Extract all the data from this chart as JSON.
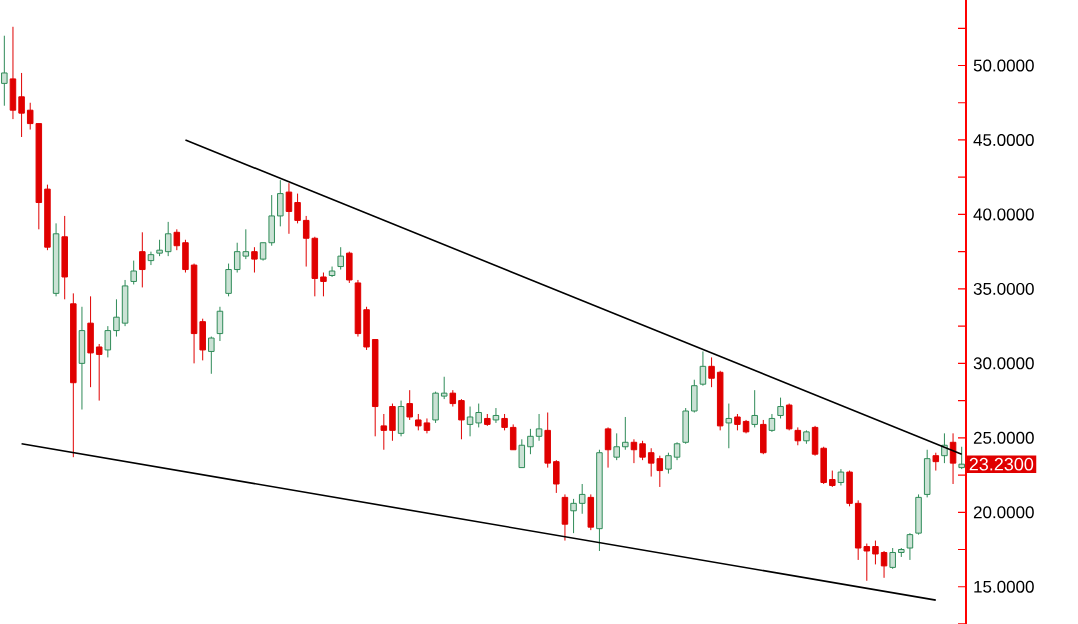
{
  "chart_data": {
    "type": "candlestick",
    "categories": [
      null,
      null,
      null,
      null,
      null,
      null,
      null,
      null,
      null,
      null,
      null,
      null,
      null,
      null,
      null,
      null,
      null,
      null,
      null,
      null,
      null,
      null,
      null,
      null,
      null,
      null,
      null,
      null,
      null,
      null,
      null,
      null,
      null,
      null,
      null,
      null,
      null,
      null,
      null,
      null,
      null,
      null,
      null,
      null,
      null,
      null,
      null,
      null,
      null,
      null,
      null,
      null,
      null,
      null,
      null,
      null,
      null,
      null,
      null,
      null,
      null,
      null,
      null,
      null,
      null,
      null,
      null,
      null,
      null,
      null,
      null,
      null,
      null,
      null,
      null,
      null,
      null,
      null,
      null,
      null,
      null,
      null,
      null,
      null,
      null,
      null,
      null,
      null,
      null,
      null,
      null,
      null,
      null,
      null,
      null,
      null,
      null,
      null,
      null,
      null,
      null,
      null,
      null,
      null,
      null,
      null,
      null,
      null,
      null,
      null,
      null,
      null
    ],
    "ohlc": [
      [
        48.8,
        52.0,
        47.3,
        49.5
      ],
      [
        49.1,
        52.6,
        46.4,
        47.0
      ],
      [
        47.9,
        49.5,
        45.2,
        46.8
      ],
      [
        47.0,
        47.5,
        45.7,
        46.1
      ],
      [
        46.1,
        46.1,
        39.0,
        40.8
      ],
      [
        41.7,
        42.0,
        37.6,
        37.8
      ],
      [
        34.7,
        39.4,
        34.5,
        38.7
      ],
      [
        38.5,
        39.9,
        34.3,
        35.8
      ],
      [
        34.0,
        34.7,
        23.7,
        28.7
      ],
      [
        30.0,
        33.8,
        26.9,
        32.2
      ],
      [
        32.7,
        34.5,
        28.4,
        30.7
      ],
      [
        31.1,
        31.3,
        27.5,
        30.6
      ],
      [
        30.9,
        32.5,
        30.4,
        32.2
      ],
      [
        32.2,
        34.3,
        31.8,
        33.1
      ],
      [
        32.7,
        35.6,
        32.5,
        35.2
      ],
      [
        35.5,
        36.9,
        35.3,
        36.2
      ],
      [
        37.5,
        38.8,
        35.1,
        36.3
      ],
      [
        36.9,
        37.5,
        36.6,
        37.3
      ],
      [
        37.4,
        38.3,
        37.2,
        37.6
      ],
      [
        37.5,
        39.5,
        37.2,
        38.7
      ],
      [
        38.8,
        39.0,
        37.6,
        37.9
      ],
      [
        38.1,
        38.3,
        36.1,
        36.3
      ],
      [
        36.6,
        36.7,
        30.0,
        32.0
      ],
      [
        32.8,
        33.0,
        30.2,
        30.9
      ],
      [
        30.8,
        31.8,
        29.3,
        31.7
      ],
      [
        32.0,
        33.8,
        31.5,
        33.5
      ],
      [
        34.7,
        36.7,
        34.5,
        36.3
      ],
      [
        36.3,
        38.1,
        36.1,
        37.5
      ],
      [
        37.2,
        39.0,
        37.0,
        37.5
      ],
      [
        37.5,
        37.8,
        36.1,
        37.0
      ],
      [
        37.0,
        38.1,
        36.9,
        38.1
      ],
      [
        38.1,
        41.3,
        37.9,
        39.9
      ],
      [
        39.9,
        42.3,
        39.2,
        41.4
      ],
      [
        41.5,
        42.1,
        38.7,
        40.2
      ],
      [
        40.8,
        41.4,
        39.4,
        39.6
      ],
      [
        39.6,
        39.9,
        36.5,
        38.4
      ],
      [
        38.4,
        38.5,
        34.5,
        35.7
      ],
      [
        35.8,
        36.1,
        34.5,
        35.5
      ],
      [
        35.9,
        36.5,
        35.8,
        36.2
      ],
      [
        36.5,
        37.8,
        36.3,
        37.2
      ],
      [
        37.4,
        37.5,
        35.4,
        35.6
      ],
      [
        35.4,
        35.6,
        31.8,
        32.0
      ],
      [
        33.6,
        33.8,
        30.9,
        31.1
      ],
      [
        31.6,
        31.6,
        25.1,
        27.1
      ],
      [
        25.8,
        26.6,
        24.2,
        25.5
      ],
      [
        27.1,
        27.3,
        24.8,
        25.5
      ],
      [
        25.3,
        27.5,
        25.1,
        27.1
      ],
      [
        27.3,
        28.2,
        26.2,
        26.4
      ],
      [
        26.2,
        26.6,
        25.5,
        25.8
      ],
      [
        26.0,
        26.3,
        25.3,
        25.5
      ],
      [
        26.2,
        28.1,
        26.0,
        28.0
      ],
      [
        27.8,
        29.1,
        27.6,
        28.0
      ],
      [
        28.0,
        28.2,
        27.1,
        27.3
      ],
      [
        27.5,
        27.6,
        24.9,
        26.2
      ],
      [
        25.9,
        27.1,
        25.1,
        26.4
      ],
      [
        26.0,
        27.3,
        25.7,
        26.7
      ],
      [
        26.3,
        26.6,
        25.8,
        25.9
      ],
      [
        26.2,
        27.0,
        26.0,
        26.5
      ],
      [
        26.3,
        26.6,
        25.5,
        25.7
      ],
      [
        25.7,
        25.9,
        24.2,
        24.2
      ],
      [
        23.0,
        24.9,
        23.0,
        24.5
      ],
      [
        24.4,
        25.6,
        23.9,
        25.1
      ],
      [
        25.1,
        26.6,
        24.8,
        25.6
      ],
      [
        25.5,
        26.7,
        23.0,
        23.3
      ],
      [
        23.4,
        23.5,
        21.3,
        21.9
      ],
      [
        21.0,
        21.2,
        18.1,
        19.2
      ],
      [
        20.1,
        20.9,
        18.6,
        20.6
      ],
      [
        20.6,
        21.9,
        19.9,
        21.2
      ],
      [
        21.0,
        21.2,
        18.8,
        19.0
      ],
      [
        18.9,
        24.2,
        17.4,
        24.0
      ],
      [
        25.6,
        25.7,
        23.0,
        24.2
      ],
      [
        23.7,
        25.3,
        23.5,
        24.4
      ],
      [
        24.4,
        26.4,
        24.2,
        24.7
      ],
      [
        24.7,
        24.9,
        23.3,
        24.2
      ],
      [
        24.6,
        24.8,
        23.5,
        23.7
      ],
      [
        24.0,
        24.3,
        22.4,
        23.3
      ],
      [
        23.6,
        23.8,
        21.7,
        22.8
      ],
      [
        22.9,
        24.0,
        22.6,
        23.8
      ],
      [
        23.7,
        24.7,
        23.5,
        24.6
      ],
      [
        24.7,
        27.0,
        24.6,
        26.8
      ],
      [
        26.8,
        28.9,
        26.7,
        28.5
      ],
      [
        28.6,
        30.8,
        28.5,
        29.8
      ],
      [
        29.8,
        30.4,
        28.4,
        29.0
      ],
      [
        29.4,
        29.5,
        25.5,
        25.8
      ],
      [
        26.0,
        27.3,
        24.3,
        26.3
      ],
      [
        26.4,
        26.6,
        25.5,
        25.9
      ],
      [
        26.1,
        26.2,
        25.3,
        25.4
      ],
      [
        25.9,
        28.2,
        25.7,
        26.5
      ],
      [
        25.9,
        26.2,
        23.9,
        24.0
      ],
      [
        25.5,
        26.6,
        25.4,
        26.3
      ],
      [
        26.5,
        27.7,
        26.3,
        27.1
      ],
      [
        27.2,
        27.3,
        25.5,
        25.6
      ],
      [
        25.5,
        25.7,
        24.5,
        24.8
      ],
      [
        24.8,
        25.5,
        24.6,
        25.4
      ],
      [
        25.7,
        25.8,
        23.8,
        23.9
      ],
      [
        24.3,
        24.4,
        21.9,
        22.0
      ],
      [
        22.2,
        22.8,
        21.7,
        21.8
      ],
      [
        22.0,
        22.9,
        21.8,
        22.7
      ],
      [
        22.7,
        22.8,
        20.4,
        20.6
      ],
      [
        20.6,
        20.8,
        16.8,
        17.6
      ],
      [
        17.7,
        17.9,
        15.4,
        17.4
      ],
      [
        17.7,
        18.1,
        16.5,
        17.2
      ],
      [
        17.3,
        17.4,
        15.6,
        16.4
      ],
      [
        16.3,
        17.6,
        16.2,
        17.3
      ],
      [
        17.3,
        17.6,
        17.0,
        17.5
      ],
      [
        17.6,
        18.6,
        16.8,
        18.5
      ],
      [
        18.6,
        21.2,
        18.5,
        21.0
      ],
      [
        21.2,
        24.2,
        21.0,
        23.6
      ],
      [
        23.8,
        24.0,
        22.8,
        23.4
      ],
      [
        23.8,
        25.3,
        23.3,
        24.5
      ],
      [
        24.7,
        25.3,
        21.9,
        23.3
      ],
      [
        23.0,
        24.4,
        22.9,
        23.23
      ]
    ],
    "series": [
      {
        "type": "line",
        "color": "#000000",
        "values": [
          null,
          null,
          null,
          null,
          null,
          null,
          null,
          null,
          null,
          null,
          null,
          null,
          null,
          null,
          null,
          null,
          null,
          null,
          null,
          null,
          null,
          45.0,
          null,
          null,
          null,
          null,
          null,
          null,
          null,
          null,
          null,
          null,
          null,
          null,
          null,
          null,
          null,
          null,
          null,
          null,
          null,
          null,
          null,
          null,
          null,
          null,
          null,
          null,
          null,
          null,
          null,
          null,
          null,
          null,
          null,
          null,
          null,
          null,
          null,
          null,
          null,
          null,
          null,
          null,
          null,
          null,
          null,
          null,
          null,
          null,
          null,
          null,
          null,
          null,
          null,
          null,
          null,
          null,
          null,
          null,
          null,
          null,
          null,
          null,
          null,
          null,
          null,
          null,
          null,
          null,
          null,
          null,
          null,
          null,
          null,
          null,
          null,
          null,
          null,
          null,
          null,
          null,
          null,
          null,
          null,
          null,
          null,
          null,
          null,
          null,
          null,
          23.9
        ]
      },
      {
        "type": "line",
        "color": "#000000",
        "values": [
          null,
          null,
          24.6,
          null,
          null,
          null,
          null,
          null,
          null,
          null,
          null,
          null,
          null,
          null,
          null,
          null,
          null,
          null,
          null,
          null,
          null,
          null,
          null,
          null,
          null,
          null,
          null,
          null,
          null,
          null,
          null,
          null,
          null,
          null,
          null,
          null,
          null,
          null,
          null,
          null,
          null,
          null,
          null,
          null,
          null,
          null,
          null,
          null,
          null,
          null,
          null,
          null,
          null,
          null,
          null,
          null,
          null,
          null,
          null,
          null,
          null,
          null,
          null,
          null,
          null,
          null,
          null,
          null,
          null,
          null,
          null,
          null,
          null,
          null,
          null,
          null,
          null,
          null,
          null,
          null,
          null,
          null,
          null,
          null,
          null,
          null,
          null,
          null,
          null,
          null,
          null,
          null,
          null,
          null,
          null,
          null,
          null,
          null,
          null,
          null,
          null,
          null,
          null,
          null,
          null,
          null,
          null,
          null,
          14.1,
          null,
          null,
          null
        ]
      }
    ],
    "ylim": [
      12.5,
      54.4
    ],
    "yticks": [
      {
        "value": 12.5,
        "label": null
      },
      {
        "value": 15,
        "label": "15.0000"
      },
      {
        "value": 17.5,
        "label": null
      },
      {
        "value": 20,
        "label": "20.0000"
      },
      {
        "value": 22.5,
        "label": null
      },
      {
        "value": 25,
        "label": "25.0000"
      },
      {
        "value": 27.5,
        "label": null
      },
      {
        "value": 30,
        "label": "30.0000"
      },
      {
        "value": 32.5,
        "label": null
      },
      {
        "value": 35,
        "label": "35.0000"
      },
      {
        "value": 37.5,
        "label": null
      },
      {
        "value": 40,
        "label": "40.0000"
      },
      {
        "value": 42.5,
        "label": null
      },
      {
        "value": 45,
        "label": "45.0000"
      },
      {
        "value": 47.5,
        "label": null
      },
      {
        "value": 50,
        "label": "50.0000"
      },
      {
        "value": 52.5,
        "label": null
      }
    ],
    "annotations": [
      "23.2300"
    ]
  }
}
